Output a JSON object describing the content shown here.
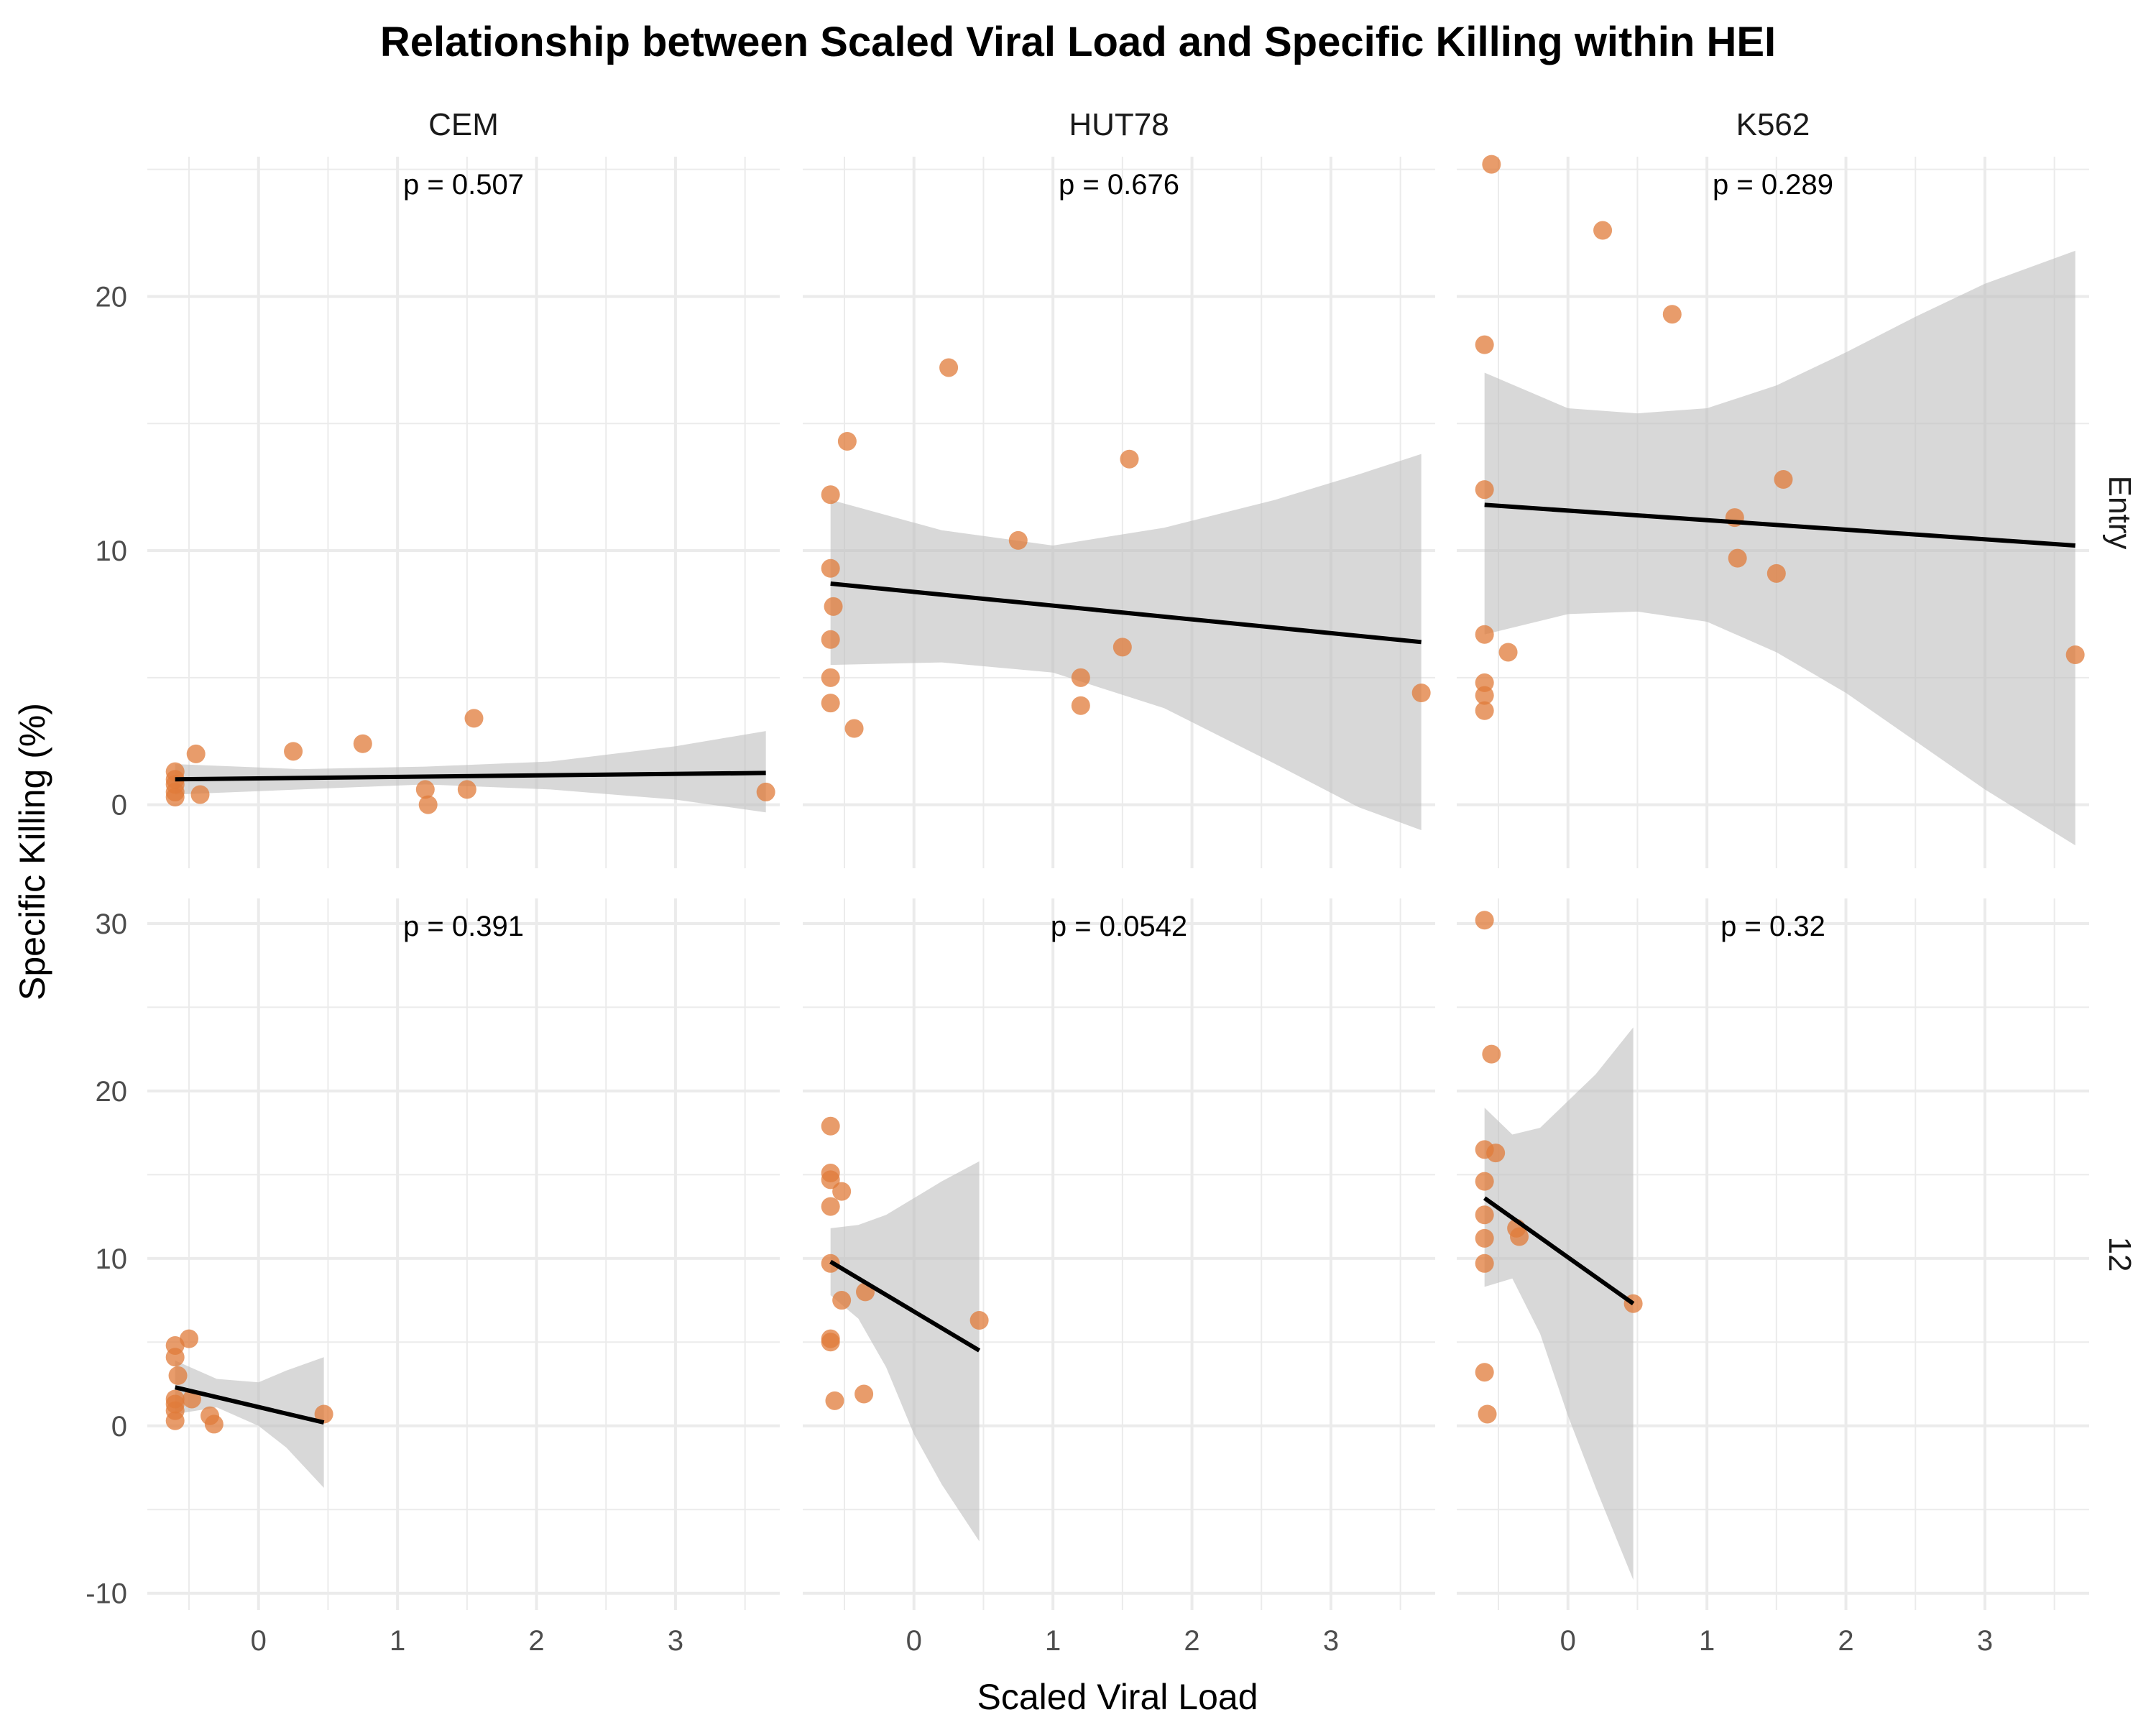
{
  "chart_data": {
    "type": "scatter",
    "title": "Relationship between Scaled Viral Load and Specific Killing within HEI",
    "xlabel": "Scaled Viral Load",
    "ylabel": "Specific Killing (%)",
    "xlim": [
      -0.8,
      3.75
    ],
    "x_ticks": [
      0,
      1,
      2,
      3
    ],
    "columns": [
      "CEM",
      "HUT78",
      "K562"
    ],
    "rows": [
      {
        "label": "Entry",
        "ylim": [
          -2.5,
          25.5
        ],
        "y_ticks": [
          0,
          10,
          20
        ]
      },
      {
        "label": "12",
        "ylim": [
          -11,
          31.5
        ],
        "y_ticks": [
          -10,
          0,
          10,
          20,
          30
        ]
      }
    ],
    "colors": {
      "point": "#e07b39",
      "ribbon": "#bebebe",
      "line": "#000000",
      "grid": "#ebebeb"
    },
    "panels": [
      {
        "column": "CEM",
        "row": "Entry",
        "p_label": "p = 0.507",
        "points": [
          [
            -0.6,
            0.3
          ],
          [
            -0.6,
            0.5
          ],
          [
            -0.6,
            0.8
          ],
          [
            -0.6,
            1.0
          ],
          [
            -0.6,
            1.3
          ],
          [
            -0.45,
            2.0
          ],
          [
            -0.42,
            0.4
          ],
          [
            0.25,
            2.1
          ],
          [
            0.75,
            2.4
          ],
          [
            1.2,
            0.6
          ],
          [
            1.22,
            0.0
          ],
          [
            1.5,
            0.6
          ],
          [
            1.55,
            3.4
          ],
          [
            3.65,
            0.5
          ]
        ],
        "fit": {
          "x": [
            -0.6,
            3.65
          ],
          "y": [
            1.0,
            1.25
          ]
        },
        "band": {
          "x": [
            -0.6,
            0.3,
            1.2,
            2.1,
            3.0,
            3.65
          ],
          "lower": [
            0.4,
            0.6,
            0.8,
            0.6,
            0.2,
            -0.3
          ],
          "upper": [
            1.6,
            1.4,
            1.5,
            1.7,
            2.3,
            2.9
          ]
        }
      },
      {
        "column": "HUT78",
        "row": "Entry",
        "p_label": "p = 0.676",
        "points": [
          [
            -0.6,
            12.2
          ],
          [
            -0.6,
            9.3
          ],
          [
            -0.58,
            7.8
          ],
          [
            -0.6,
            6.5
          ],
          [
            -0.6,
            5.0
          ],
          [
            -0.6,
            4.0
          ],
          [
            -0.48,
            14.3
          ],
          [
            -0.43,
            3.0
          ],
          [
            0.25,
            17.2
          ],
          [
            0.75,
            10.4
          ],
          [
            1.2,
            5.0
          ],
          [
            1.2,
            3.9
          ],
          [
            1.5,
            6.2
          ],
          [
            1.55,
            13.6
          ],
          [
            3.65,
            4.4
          ]
        ],
        "fit": {
          "x": [
            -0.6,
            3.65
          ],
          "y": [
            8.7,
            6.4
          ]
        },
        "band": {
          "x": [
            -0.6,
            0.2,
            1.0,
            1.8,
            2.6,
            3.2,
            3.65
          ],
          "lower": [
            5.5,
            5.6,
            5.2,
            3.8,
            1.6,
            -0.1,
            -1.0
          ],
          "upper": [
            12.0,
            10.8,
            10.2,
            10.9,
            12.0,
            13.0,
            13.8
          ]
        }
      },
      {
        "column": "K562",
        "row": "Entry",
        "p_label": "p = 0.289",
        "points": [
          [
            -0.55,
            25.2
          ],
          [
            -0.6,
            18.1
          ],
          [
            -0.6,
            12.4
          ],
          [
            -0.6,
            6.7
          ],
          [
            -0.6,
            4.8
          ],
          [
            -0.6,
            4.3
          ],
          [
            -0.6,
            3.7
          ],
          [
            -0.43,
            6.0
          ],
          [
            0.25,
            22.6
          ],
          [
            0.75,
            19.3
          ],
          [
            1.2,
            11.3
          ],
          [
            1.22,
            9.7
          ],
          [
            1.5,
            9.1
          ],
          [
            1.55,
            12.8
          ],
          [
            3.65,
            5.9
          ]
        ],
        "fit": {
          "x": [
            -0.6,
            3.65
          ],
          "y": [
            11.8,
            10.2
          ]
        },
        "band": {
          "x": [
            -0.6,
            0.0,
            0.5,
            1.0,
            1.5,
            2.0,
            2.5,
            3.0,
            3.65
          ],
          "lower": [
            6.7,
            7.5,
            7.6,
            7.2,
            6.0,
            4.4,
            2.5,
            0.6,
            -1.6
          ],
          "upper": [
            17.0,
            15.6,
            15.4,
            15.6,
            16.5,
            17.8,
            19.2,
            20.5,
            21.8
          ]
        }
      },
      {
        "column": "CEM",
        "row": "12",
        "p_label": "p = 0.391",
        "points": [
          [
            -0.6,
            4.8
          ],
          [
            -0.6,
            4.1
          ],
          [
            -0.58,
            3.0
          ],
          [
            -0.6,
            1.6
          ],
          [
            -0.6,
            1.3
          ],
          [
            -0.6,
            0.9
          ],
          [
            -0.6,
            0.3
          ],
          [
            -0.5,
            5.2
          ],
          [
            -0.48,
            1.6
          ],
          [
            -0.35,
            0.6
          ],
          [
            -0.32,
            0.1
          ],
          [
            0.47,
            0.7
          ]
        ],
        "fit": {
          "x": [
            -0.6,
            0.47
          ],
          "y": [
            2.3,
            0.2
          ]
        },
        "band": {
          "x": [
            -0.6,
            -0.3,
            0.0,
            0.2,
            0.47
          ],
          "lower": [
            0.7,
            1.1,
            0.0,
            -1.3,
            -3.7
          ],
          "upper": [
            3.9,
            2.8,
            2.6,
            3.3,
            4.1
          ]
        }
      },
      {
        "column": "HUT78",
        "row": "12",
        "p_label": "p = 0.0542",
        "points": [
          [
            -0.6,
            17.9
          ],
          [
            -0.6,
            15.1
          ],
          [
            -0.6,
            14.7
          ],
          [
            -0.52,
            14.0
          ],
          [
            -0.6,
            13.1
          ],
          [
            -0.6,
            9.7
          ],
          [
            -0.52,
            7.5
          ],
          [
            -0.35,
            8.0
          ],
          [
            -0.6,
            5.2
          ],
          [
            -0.6,
            5.0
          ],
          [
            -0.57,
            1.5
          ],
          [
            -0.36,
            1.9
          ],
          [
            0.47,
            6.3
          ]
        ],
        "fit": {
          "x": [
            -0.6,
            0.47
          ],
          "y": [
            9.8,
            4.5
          ]
        },
        "band": {
          "x": [
            -0.6,
            -0.4,
            -0.2,
            0.0,
            0.2,
            0.47
          ],
          "lower": [
            7.8,
            6.4,
            3.5,
            -0.5,
            -3.5,
            -6.9
          ],
          "upper": [
            11.8,
            12.0,
            12.6,
            13.6,
            14.6,
            15.8
          ]
        }
      },
      {
        "column": "K562",
        "row": "12",
        "p_label": "p = 0.32",
        "points": [
          [
            -0.6,
            30.2
          ],
          [
            -0.55,
            22.2
          ],
          [
            -0.6,
            16.5
          ],
          [
            -0.52,
            16.3
          ],
          [
            -0.6,
            14.6
          ],
          [
            -0.6,
            12.6
          ],
          [
            -0.37,
            11.8
          ],
          [
            -0.6,
            11.2
          ],
          [
            -0.35,
            11.3
          ],
          [
            -0.6,
            9.7
          ],
          [
            -0.6,
            3.2
          ],
          [
            -0.58,
            0.7
          ],
          [
            0.47,
            7.3
          ]
        ],
        "fit": {
          "x": [
            -0.6,
            0.47
          ],
          "y": [
            13.6,
            7.3
          ]
        },
        "band": {
          "x": [
            -0.6,
            -0.4,
            -0.2,
            0.0,
            0.2,
            0.47
          ],
          "lower": [
            8.3,
            8.8,
            5.5,
            0.6,
            -3.7,
            -9.2
          ],
          "upper": [
            19.0,
            17.4,
            17.8,
            19.4,
            21.0,
            23.8
          ]
        }
      }
    ]
  }
}
